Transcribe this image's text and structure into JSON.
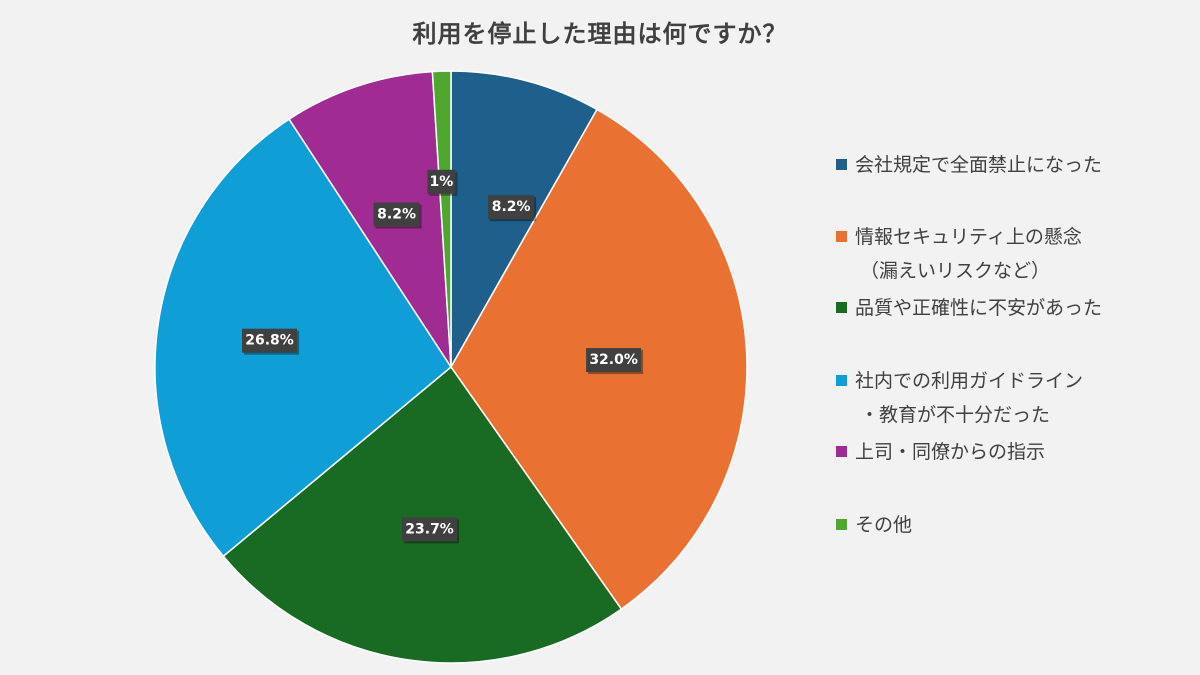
{
  "chart_data": {
    "type": "pie",
    "title": "利用を停止した理由は何ですか？",
    "slices": [
      {
        "label": [
          "会社規定で全面禁止になった"
        ],
        "value": 8.2,
        "display": "8.2%",
        "color": "#1f5f8b"
      },
      {
        "label": [
          "情報セキュリティ上の懸念",
          "（漏えいリスクなど）"
        ],
        "value": 32.0,
        "display": "32.0%",
        "color": "#e97132"
      },
      {
        "label": [
          "品質や正確性に不安があった"
        ],
        "value": 23.7,
        "display": "23.7%",
        "color": "#196b24"
      },
      {
        "label": [
          "社内での利用ガイドライン",
          "・教育が不十分だった"
        ],
        "value": 26.8,
        "display": "26.8%",
        "color": "#0f9ed5"
      },
      {
        "label": [
          "上司・同僚からの指示"
        ],
        "value": 8.2,
        "display": "8.2%",
        "color": "#a02b93"
      },
      {
        "label": [
          "その他"
        ],
        "value": 1,
        "display": "1%",
        "color": "#4ea72e"
      }
    ],
    "start_angle": "12 o'clock",
    "direction": "clockwise",
    "legend_position": "right"
  }
}
